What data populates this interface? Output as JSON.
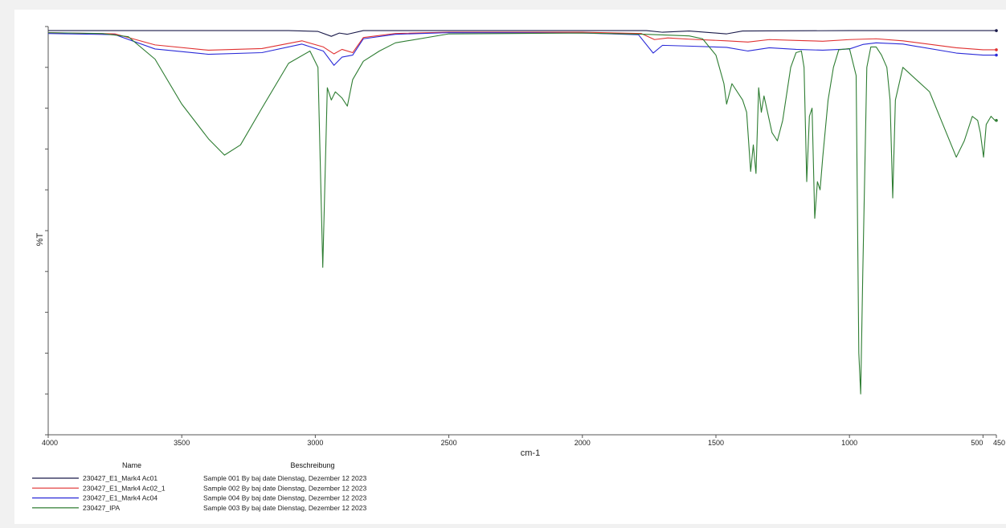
{
  "chart_data": {
    "type": "line",
    "title": "",
    "xlabel": "cm-1",
    "ylabel": "%T",
    "xlim": [
      4000,
      450
    ],
    "ylim": [
      0,
      100
    ],
    "x_ticks": [
      "4000",
      "3500",
      "3000",
      "2500",
      "2000",
      "1500",
      "1000",
      "500",
      "450"
    ],
    "y_ticks_count": 10,
    "grid": false,
    "legend": {
      "placement": "bottom-left",
      "columns": [
        "Name",
        "Beschreibung"
      ]
    },
    "series": [
      {
        "name": "230427_E1_Mark4 Ac01",
        "description": "Sample 001 By baj date Dienstag, Dezember 12 2023",
        "color": "#1a1a4a",
        "points": [
          [
            4000,
            99
          ],
          [
            3600,
            99
          ],
          [
            3100,
            99
          ],
          [
            2990,
            98.8
          ],
          [
            2940,
            97.6
          ],
          [
            2910,
            98.4
          ],
          [
            2880,
            98.1
          ],
          [
            2820,
            99
          ],
          [
            2500,
            99
          ],
          [
            2000,
            99
          ],
          [
            1760,
            99
          ],
          [
            1700,
            98.6
          ],
          [
            1600,
            98.9
          ],
          [
            1460,
            98.2
          ],
          [
            1400,
            98.9
          ],
          [
            1000,
            99
          ],
          [
            700,
            99
          ],
          [
            450,
            99
          ]
        ]
      },
      {
        "name": "230427_E1_Mark4 Ac02_1",
        "description": "Sample 002 By baj date Dienstag, Dezember 12 2023",
        "color": "#e03030",
        "points": [
          [
            4000,
            98.5
          ],
          [
            3750,
            98.2
          ],
          [
            3600,
            95.5
          ],
          [
            3400,
            94.2
          ],
          [
            3200,
            94.6
          ],
          [
            3050,
            96.5
          ],
          [
            2970,
            95
          ],
          [
            2930,
            93.3
          ],
          [
            2900,
            94.4
          ],
          [
            2860,
            93.6
          ],
          [
            2820,
            97.3
          ],
          [
            2700,
            98.3
          ],
          [
            2500,
            98.6
          ],
          [
            2000,
            98.6
          ],
          [
            1780,
            98.3
          ],
          [
            1730,
            96.8
          ],
          [
            1680,
            97.2
          ],
          [
            1600,
            96.9
          ],
          [
            1460,
            96.5
          ],
          [
            1380,
            96.2
          ],
          [
            1300,
            96.8
          ],
          [
            1200,
            96.6
          ],
          [
            1100,
            96.4
          ],
          [
            1000,
            96.8
          ],
          [
            900,
            97
          ],
          [
            800,
            96.5
          ],
          [
            600,
            94.8
          ],
          [
            500,
            94.3
          ],
          [
            450,
            94.3
          ]
        ]
      },
      {
        "name": "230427_E1_Mark4 Ac04",
        "description": "Sample 004 By baj date Dienstag, Dezember 12 2023",
        "color": "#2a2ad8",
        "points": [
          [
            4000,
            98.3
          ],
          [
            3750,
            98
          ],
          [
            3600,
            94.5
          ],
          [
            3400,
            93.2
          ],
          [
            3200,
            93.6
          ],
          [
            3050,
            95.7
          ],
          [
            2970,
            94
          ],
          [
            2930,
            90.5
          ],
          [
            2900,
            92.5
          ],
          [
            2860,
            93
          ],
          [
            2820,
            97
          ],
          [
            2700,
            98.1
          ],
          [
            2500,
            98.5
          ],
          [
            2000,
            98.4
          ],
          [
            1790,
            98
          ],
          [
            1735,
            93.5
          ],
          [
            1700,
            95.4
          ],
          [
            1600,
            95.2
          ],
          [
            1460,
            94.9
          ],
          [
            1380,
            94
          ],
          [
            1300,
            94.8
          ],
          [
            1200,
            94.4
          ],
          [
            1100,
            94.2
          ],
          [
            1000,
            94.5
          ],
          [
            950,
            95.6
          ],
          [
            900,
            96
          ],
          [
            800,
            95.7
          ],
          [
            600,
            93.5
          ],
          [
            500,
            93
          ],
          [
            450,
            93
          ]
        ]
      },
      {
        "name": "230427_IPA",
        "description": "Sample 003 By baj date Dienstag, Dezember 12 2023",
        "color": "#2e7d32",
        "points": [
          [
            4000,
            98.5
          ],
          [
            3800,
            98.3
          ],
          [
            3700,
            97.5
          ],
          [
            3600,
            92
          ],
          [
            3500,
            81
          ],
          [
            3400,
            72.5
          ],
          [
            3340,
            68.5
          ],
          [
            3280,
            71
          ],
          [
            3200,
            80
          ],
          [
            3100,
            91
          ],
          [
            3020,
            94
          ],
          [
            2990,
            90
          ],
          [
            2972,
            41
          ],
          [
            2955,
            85
          ],
          [
            2940,
            82
          ],
          [
            2925,
            84
          ],
          [
            2900,
            82.5
          ],
          [
            2880,
            80.5
          ],
          [
            2860,
            87
          ],
          [
            2820,
            91.5
          ],
          [
            2760,
            94
          ],
          [
            2700,
            96
          ],
          [
            2500,
            98.2
          ],
          [
            2000,
            98.4
          ],
          [
            1760,
            98.1
          ],
          [
            1600,
            97.7
          ],
          [
            1550,
            97
          ],
          [
            1500,
            93
          ],
          [
            1470,
            86
          ],
          [
            1460,
            81
          ],
          [
            1440,
            86
          ],
          [
            1400,
            82
          ],
          [
            1385,
            79
          ],
          [
            1370,
            64.5
          ],
          [
            1360,
            71
          ],
          [
            1350,
            64
          ],
          [
            1340,
            85
          ],
          [
            1330,
            79
          ],
          [
            1320,
            83
          ],
          [
            1310,
            80
          ],
          [
            1290,
            74
          ],
          [
            1270,
            72
          ],
          [
            1250,
            77
          ],
          [
            1220,
            90
          ],
          [
            1200,
            93.6
          ],
          [
            1180,
            94
          ],
          [
            1170,
            90
          ],
          [
            1160,
            62
          ],
          [
            1150,
            78
          ],
          [
            1140,
            80
          ],
          [
            1130,
            53
          ],
          [
            1120,
            62
          ],
          [
            1110,
            60
          ],
          [
            1100,
            68
          ],
          [
            1080,
            82
          ],
          [
            1060,
            90
          ],
          [
            1040,
            94.3
          ],
          [
            1000,
            94.6
          ],
          [
            975,
            88
          ],
          [
            965,
            20
          ],
          [
            958,
            10
          ],
          [
            950,
            40
          ],
          [
            935,
            90
          ],
          [
            920,
            95
          ],
          [
            900,
            95
          ],
          [
            880,
            93
          ],
          [
            860,
            90
          ],
          [
            848,
            82
          ],
          [
            838,
            58
          ],
          [
            828,
            82
          ],
          [
            800,
            90
          ],
          [
            700,
            84
          ],
          [
            650,
            76
          ],
          [
            600,
            68
          ],
          [
            570,
            72
          ],
          [
            540,
            78
          ],
          [
            520,
            77
          ],
          [
            510,
            74
          ],
          [
            498,
            68
          ],
          [
            488,
            76
          ],
          [
            470,
            78
          ],
          [
            455,
            77
          ],
          [
            450,
            77
          ]
        ]
      }
    ]
  }
}
